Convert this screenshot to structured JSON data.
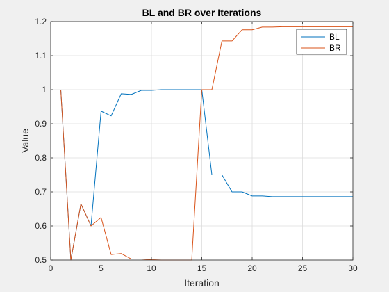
{
  "chart_data": {
    "type": "line",
    "title": "BL and BR over Iterations",
    "xlabel": "Iteration",
    "ylabel": "Value",
    "xlim": [
      0,
      30
    ],
    "ylim": [
      0.5,
      1.2
    ],
    "xticks": [
      0,
      5,
      10,
      15,
      20,
      25,
      30
    ],
    "yticks": [
      0.5,
      0.6,
      0.7,
      0.8,
      0.9,
      1,
      1.1,
      1.2
    ],
    "grid": true,
    "legend_position": "top-right",
    "series": [
      {
        "name": "BL",
        "color": "#0072BD",
        "x": [
          1,
          2,
          3,
          4,
          5,
          6,
          7,
          8,
          9,
          10,
          11,
          12,
          13,
          14,
          15,
          16,
          17,
          18,
          19,
          20,
          21,
          22,
          23,
          24,
          25,
          26,
          27,
          28,
          29,
          30
        ],
        "y": [
          1.0,
          0.5,
          0.665,
          0.6,
          0.937,
          0.923,
          0.988,
          0.986,
          0.998,
          0.998,
          1.0,
          1.0,
          1.0,
          1.0,
          1.0,
          0.75,
          0.75,
          0.7,
          0.7,
          0.688,
          0.688,
          0.686,
          0.686,
          0.686,
          0.686,
          0.686,
          0.686,
          0.686,
          0.686,
          0.686
        ]
      },
      {
        "name": "BR",
        "color": "#D95319",
        "x": [
          1,
          2,
          3,
          4,
          5,
          6,
          7,
          8,
          9,
          10,
          11,
          12,
          13,
          14,
          15,
          16,
          17,
          18,
          19,
          20,
          21,
          22,
          23,
          24,
          25,
          26,
          27,
          28,
          29,
          30
        ],
        "y": [
          1.0,
          0.5,
          0.665,
          0.6,
          0.625,
          0.516,
          0.519,
          0.503,
          0.503,
          0.501,
          0.5,
          0.5,
          0.5,
          0.5,
          1.0,
          1.0,
          1.143,
          1.143,
          1.176,
          1.176,
          1.184,
          1.184,
          1.185,
          1.185,
          1.185,
          1.185,
          1.185,
          1.185,
          1.185,
          1.185
        ]
      }
    ]
  }
}
